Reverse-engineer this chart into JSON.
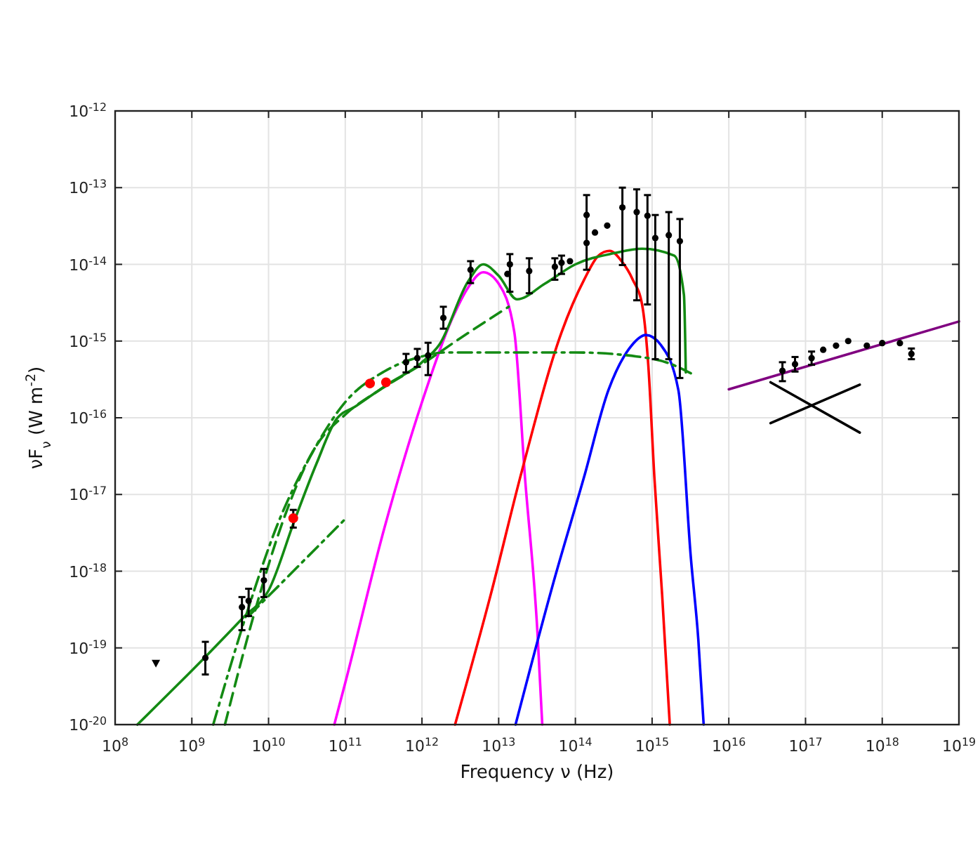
{
  "chart_data": {
    "type": "scatter",
    "xlabel": "Frequency ν (Hz)",
    "ylabel": "νF$_{ν}$ (W m$^{-2}$)",
    "log": "xy",
    "grid": true,
    "xlim": [
      100000000.0,
      1e+19
    ],
    "ylim": [
      1e-20,
      1e-12
    ],
    "xticks": [
      {
        "value": 100000000.0,
        "label": "10$^{8}$"
      },
      {
        "value": 1000000000.0,
        "label": "10$^{9}$"
      },
      {
        "value": 10000000000.0,
        "label": "10$^{10}$"
      },
      {
        "value": 100000000000.0,
        "label": "10$^{11}$"
      },
      {
        "value": 1000000000000.0,
        "label": "10$^{12}$"
      },
      {
        "value": 10000000000000.0,
        "label": "10$^{13}$"
      },
      {
        "value": 100000000000000.0,
        "label": "10$^{14}$"
      },
      {
        "value": 1000000000000000.0,
        "label": "10$^{15}$"
      },
      {
        "value": 1e+16,
        "label": "10$^{16}$"
      },
      {
        "value": 1e+17,
        "label": "10$^{17}$"
      },
      {
        "value": 1e+18,
        "label": "10$^{18}$"
      },
      {
        "value": 1e+19,
        "label": "10$^{19}$"
      }
    ],
    "yticks": [
      {
        "value": 1e-20,
        "label": "10$^{-20}$"
      },
      {
        "value": 1e-19,
        "label": "10$^{-19}$"
      },
      {
        "value": 1e-18,
        "label": "10$^{-18}$"
      },
      {
        "value": 1e-17,
        "label": "10$^{-17}$"
      },
      {
        "value": 1e-16,
        "label": "10$^{-16}$"
      },
      {
        "value": 1e-15,
        "label": "10$^{-15}$"
      },
      {
        "value": 1e-14,
        "label": "10$^{-14}$"
      },
      {
        "value": 1e-13,
        "label": "10$^{-13}$"
      },
      {
        "value": 1e-12,
        "label": "10$^{-12}$"
      }
    ],
    "series": [
      {
        "type": "line",
        "color": "#ff00ff",
        "marker": "none",
        "line_style": "solid",
        "x": [
          72000000000.0,
          100000000000.0,
          320000000000.0,
          1000000000000.0,
          2500000000000.0,
          4000000000000.0,
          6300000000000.0,
          10000000000000.0,
          16000000000000.0,
          22000000000000.0,
          32000000000000.0,
          37000000000000.0
        ],
        "values": [
          1e-20,
          3.5e-20,
          3.5e-18,
          1.6e-16,
          2e-15,
          5e-15,
          7.9e-15,
          5.6e-15,
          1.3e-15,
          1.7e-17,
          1.6e-19,
          1e-20
        ]
      },
      {
        "type": "line",
        "color": "#ff0000",
        "marker": "none",
        "line_style": "solid",
        "x": [
          2700000000000.0,
          7900000000000.0,
          20000000000000.0,
          66000000000000.0,
          130000000000000.0,
          200000000000000.0,
          280000000000000.0,
          400000000000000.0,
          560000000000000.0,
          740000000000000.0,
          890000000000000.0,
          1070000000000000.0,
          1350000000000000.0,
          1700000000000000.0
        ],
        "values": [
          1e-20,
          5e-19,
          2e-17,
          1.3e-15,
          6.3e-15,
          1.3e-14,
          1.5e-14,
          1.1e-14,
          6.3e-15,
          3e-15,
          5e-16,
          1.7e-17,
          5e-19,
          1e-20
        ]
      },
      {
        "type": "line",
        "color": "#0000ff",
        "marker": "none",
        "line_style": "solid",
        "x": [
          16600000000000.0,
          50000000000000.0,
          130000000000000.0,
          270000000000000.0,
          500000000000000.0,
          830000000000000.0,
          1300000000000000.0,
          2200000000000000.0,
          3200000000000000.0,
          4000000000000000.0,
          4700000000000000.0
        ],
        "values": [
          1e-20,
          6.3e-19,
          1.7e-17,
          2.3e-16,
          7.9e-16,
          1.2e-15,
          8.9e-16,
          2.3e-16,
          1.5e-18,
          1.3e-19,
          1e-20
        ]
      },
      {
        "type": "line",
        "color": "#138a13",
        "marker": "none",
        "line_style": "dashed",
        "x": [
          2700000000.0,
          6300000000.0,
          16000000000.0,
          40000000000.0,
          100000000000.0,
          320000000000.0,
          1000000000000.0,
          3200000000000.0,
          13500000000000.0
        ],
        "values": [
          1e-20,
          2.5e-19,
          5e-18,
          4e-17,
          1.1e-16,
          2.5e-16,
          5e-16,
          1.1e-15,
          2.8e-15
        ]
      },
      {
        "type": "line",
        "color": "#138a13",
        "marker": "none",
        "line_style": "dashdot",
        "x": [
          1900000000.0,
          5000000000.0,
          13000000000.0,
          40000000000.0,
          100000000000.0,
          320000000000.0,
          1000000000000.0,
          2000000000000.0,
          100000000000000.0,
          630000000000000.0,
          1600000000000000.0,
          3200000000000000.0
        ],
        "values": [
          1e-20,
          2.5e-19,
          4e-18,
          4e-17,
          1.6e-16,
          4e-16,
          6.3e-16,
          7.1e-16,
          7.1e-16,
          6.3e-16,
          5.2e-16,
          3.8e-16
        ]
      },
      {
        "type": "line",
        "color": "#138a13",
        "marker": "none",
        "line_style": "dashdot",
        "x": [
          5500000000.0,
          98000000000.0
        ],
        "values": [
          2.6e-19,
          4.7e-18
        ]
      },
      {
        "type": "line",
        "color": "#138a13",
        "marker": "none",
        "line_style": "solid",
        "x": [
          195000000.0,
          1550000000.0,
          4700000000.0,
          10000000000.0,
          22000000000.0,
          42000000000.0,
          78000000000.0,
          135000000000.0,
          370000000000.0,
          980000000000.0,
          1700000000000.0,
          4000000000000.0,
          6300000000000.0,
          10000000000000.0,
          17400000000000.0,
          40000000000000.0,
          100000000000000.0,
          320000000000000.0,
          740000000000000.0,
          1950000000000000.0,
          2600000000000000.0,
          2750000000000000.0
        ],
        "values": [
          1e-20,
          7.9e-20,
          2.5e-19,
          5.6e-19,
          4.7e-18,
          2.5e-17,
          9.8e-17,
          1.4e-16,
          2.8e-16,
          5.2e-16,
          9.1e-16,
          6e-15,
          1e-14,
          7.1e-15,
          3.5e-15,
          5.6e-15,
          1e-14,
          1.4e-14,
          1.6e-14,
          1.3e-14,
          4e-15,
          3.9e-16
        ]
      },
      {
        "type": "line",
        "color": "#800080",
        "marker": "none",
        "line_style": "solid",
        "x": [
          1e+16,
          1e+19
        ],
        "values": [
          2.35e-16,
          1.8e-15
        ]
      },
      {
        "type": "line",
        "color": "#000000",
        "marker": "none",
        "line_style": "solid",
        "x": [
          3.5e+16,
          5.1e+17
        ],
        "values": [
          2.9e-16,
          6.4e-17
        ]
      },
      {
        "type": "line",
        "color": "#000000",
        "marker": "none",
        "line_style": "solid",
        "x": [
          3.5e+16,
          5.1e+17
        ],
        "values": [
          8.5e-17,
          2.7e-16
        ]
      },
      {
        "type": "scatter",
        "color": "#000000",
        "marker": "circle",
        "x": [
          1500000000.0,
          4500000000.0,
          5500000000.0,
          8700000000.0,
          620000000000.0,
          870000000000.0,
          1200000000000.0,
          1900000000000.0,
          4300000000000.0,
          13000000000000.0,
          14000000000000.0,
          25000000000000.0,
          54000000000000.0,
          66000000000000.0,
          85000000000000.0,
          140000000000000.0,
          140000000000000.0,
          180000000000000.0,
          260000000000000.0,
          410000000000000.0,
          630000000000000.0,
          870000000000000.0,
          1100000000000000.0,
          1650000000000000.0,
          2300000000000000.0,
          5e+16,
          7.3e+16,
          1.2e+17,
          1.7e+17,
          2.5e+17,
          3.6e+17,
          6.3e+17,
          1e+18,
          1.7e+18,
          2.4e+18
        ],
        "values": [
          7.4e-20,
          3.4e-19,
          4.1e-19,
          7.6e-19,
          5.3e-16,
          6e-16,
          6.5e-16,
          2e-15,
          8.5e-15,
          7.5e-15,
          1e-14,
          8.2e-15,
          9.3e-15,
          1.05e-14,
          1.1e-14,
          1.9e-14,
          4.4e-14,
          2.6e-14,
          3.2e-14,
          5.5e-14,
          4.8e-14,
          4.3e-14,
          2.2e-14,
          2.4e-14,
          2e-14,
          4.1e-16,
          5e-16,
          6e-16,
          7.7e-16,
          8.7e-16,
          1e-15,
          8.7e-16,
          9.4e-16,
          9.4e-16,
          6.8e-16
        ],
        "errors": [
          [
            4.5e-20,
            1.2e-19
          ],
          [
            1.7e-19,
            4.6e-19
          ],
          [
            2.6e-19,
            5.9e-19
          ],
          [
            4.6e-19,
            1.07e-18
          ],
          [
            3.9e-16,
            6.8e-16
          ],
          [
            4.6e-16,
            7.9e-16
          ],
          [
            3.6e-16,
            9.5e-16
          ],
          [
            1.45e-15,
            2.8e-15
          ],
          [
            5.7e-15,
            1.1e-14
          ],
          null,
          [
            4.4e-15,
            1.36e-14
          ],
          [
            4.2e-15,
            1.2e-14
          ],
          [
            6.3e-15,
            1.2e-14
          ],
          [
            7.5e-15,
            1.3e-14
          ],
          null,
          null,
          [
            8.5e-15,
            8e-14
          ],
          null,
          null,
          [
            9.8e-15,
            1e-13
          ],
          [
            3.4e-15,
            9.5e-14
          ],
          [
            3e-15,
            8e-14
          ],
          [
            5.8e-16,
            4.4e-14
          ],
          [
            5.8e-16,
            4.8e-14
          ],
          [
            3.3e-16,
            3.9e-14
          ],
          [
            3e-16,
            5.3e-16
          ],
          [
            4e-16,
            6.2e-16
          ],
          [
            4.9e-16,
            7.3e-16
          ],
          null,
          null,
          null,
          null,
          null,
          null,
          [
            5.8e-16,
            8e-16
          ]
        ]
      },
      {
        "type": "scatter",
        "color": "#ff0000",
        "marker": "circle",
        "x": [
          21000000000.0,
          210000000000.0,
          340000000000.0
        ],
        "values": [
          4.9e-18,
          2.8e-16,
          2.9e-16
        ],
        "errors": [
          [
            3.7e-18,
            6.3e-18
          ],
          null,
          null
        ]
      },
      {
        "type": "scatter",
        "color": "#000000",
        "marker": "triangle",
        "x": [
          340000000.0
        ],
        "values": [
          6.3e-20
        ]
      }
    ]
  }
}
